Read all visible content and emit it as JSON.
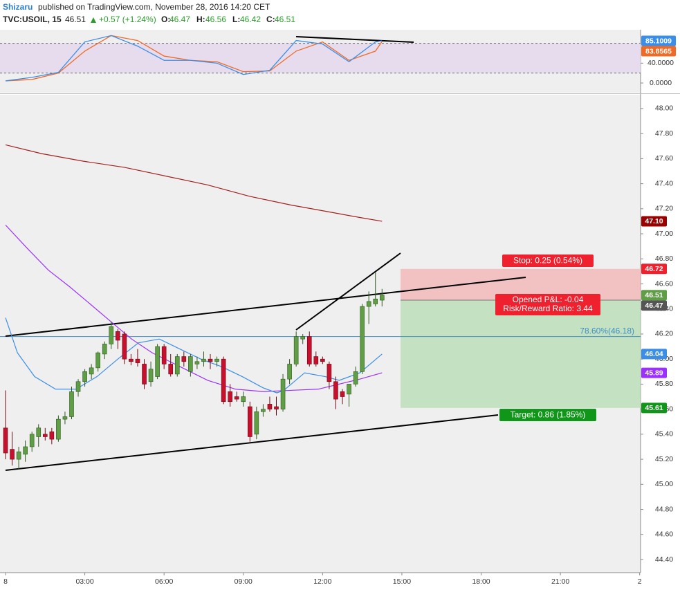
{
  "header": {
    "author": "Shizaru",
    "published": "published on TradingView.com, November 28, 2016 14:20 CET",
    "symbol": "TVC:USOIL, 15",
    "last": "46.51",
    "change": "+0.57 (+1.24%)",
    "o_label": "O:",
    "o": "46.47",
    "h_label": "H:",
    "h": "46.56",
    "l_label": "L:",
    "l": "46.42",
    "c_label": "C:",
    "c": "46.51"
  },
  "chart_data": [
    {
      "type": "candlestick",
      "x": [
        0,
        0.25,
        0.5,
        0.75,
        1,
        1.25,
        1.5,
        1.75,
        2,
        2.25,
        2.5,
        2.75,
        3,
        3.25,
        3.5,
        3.75,
        4,
        4.25,
        4.5,
        4.75,
        5,
        5.25,
        5.5,
        5.75,
        6,
        6.25,
        6.5,
        6.75,
        7,
        7.25,
        7.5,
        7.75,
        8,
        8.25,
        8.5,
        8.75,
        9,
        9.25,
        9.5,
        9.75,
        10,
        10.25,
        10.5,
        10.75,
        11,
        11.25,
        11.5,
        11.75,
        12,
        12.25,
        12.5,
        12.75,
        13,
        13.25,
        13.5,
        13.75,
        14,
        14.25
      ],
      "open": [
        45.45,
        45.28,
        45.2,
        45.24,
        45.3,
        45.38,
        45.4,
        45.42,
        45.36,
        45.52,
        45.54,
        45.74,
        45.82,
        45.88,
        45.93,
        46.04,
        46.12,
        46.22,
        46.2,
        46,
        46,
        45.96,
        45.82,
        45.86,
        46.1,
        45.96,
        45.88,
        46.02,
        45.9,
        45.96,
        45.98,
        46,
        45.98,
        46,
        45.74,
        45.7,
        45.66,
        45.62,
        45.4,
        45.58,
        45.64,
        45.62,
        45.6,
        45.84,
        45.96,
        46.16,
        46.18,
        46.02,
        46,
        45.96,
        45.82,
        45.74,
        45.72,
        45.8,
        45.9,
        46.42,
        46.44,
        46.47
      ],
      "high": [
        45.75,
        45.42,
        45.3,
        45.35,
        45.42,
        45.48,
        45.45,
        45.45,
        45.55,
        45.58,
        45.78,
        45.84,
        45.92,
        45.96,
        46.06,
        46.14,
        46.3,
        46.24,
        46.22,
        46.04,
        46.08,
        46,
        45.98,
        46.12,
        46.12,
        46.04,
        46.04,
        46.06,
        46.04,
        46.02,
        46.06,
        46.04,
        46.02,
        46.02,
        45.8,
        45.74,
        45.74,
        45.66,
        45.62,
        45.64,
        45.7,
        45.7,
        45.88,
        46,
        46.22,
        46.2,
        46.22,
        46.06,
        46.02,
        45.98,
        45.86,
        45.76,
        45.8,
        45.94,
        46.44,
        46.54,
        46.69,
        46.56
      ],
      "low": [
        45.2,
        45.15,
        45.12,
        45.18,
        45.26,
        45.3,
        45.35,
        45.32,
        45.34,
        45.48,
        45.52,
        45.7,
        45.78,
        45.84,
        45.9,
        46,
        46.08,
        46.08,
        45.96,
        45.95,
        45.94,
        45.76,
        45.78,
        45.84,
        45.92,
        45.86,
        45.86,
        45.94,
        45.86,
        45.92,
        45.94,
        45.92,
        45.94,
        45.64,
        45.62,
        45.66,
        45.62,
        45.34,
        45.36,
        45.54,
        45.58,
        45.55,
        45.58,
        45.8,
        45.94,
        46.12,
        45.94,
        45.94,
        45.96,
        45.76,
        45.6,
        45.64,
        45.62,
        45.78,
        45.88,
        46.28,
        46.42,
        46.42
      ],
      "close": [
        45.25,
        45.2,
        45.26,
        45.3,
        45.4,
        45.45,
        45.38,
        45.36,
        45.52,
        45.54,
        45.74,
        45.82,
        45.9,
        45.93,
        46.05,
        46.12,
        46.26,
        46.15,
        46,
        45.98,
        45.97,
        45.8,
        45.92,
        46.1,
        45.96,
        45.88,
        46.02,
        45.98,
        46.02,
        45.98,
        46,
        45.98,
        46,
        45.66,
        45.66,
        45.68,
        45.7,
        45.38,
        45.58,
        45.6,
        45.6,
        45.6,
        45.84,
        45.96,
        46.18,
        46.18,
        45.96,
        45.96,
        45.98,
        45.82,
        45.68,
        45.7,
        45.8,
        45.9,
        46.42,
        46.46,
        46.48,
        46.51
      ],
      "up_color": "#5f9e45",
      "down_color": "#c8102e",
      "overlays": [
        {
          "color": "#a3201e",
          "x": [
            0,
            1.36,
            2.93,
            4.51,
            6.08,
            7.65,
            9.22,
            10.79,
            12.37,
            13.41,
            14.25
          ],
          "values": [
            47.71,
            47.64,
            47.58,
            47.53,
            47.46,
            47.39,
            47.3,
            47.23,
            47.17,
            47.13,
            47.1
          ]
        },
        {
          "color": "#9b30ff",
          "x": [
            0,
            0.84,
            1.62,
            2.41,
            3.2,
            3.98,
            4.77,
            5.55,
            6.6,
            7.65,
            8.7,
            9.75,
            10.79,
            11.84,
            13.41,
            14.25
          ],
          "values": [
            47.07,
            46.88,
            46.71,
            46.58,
            46.44,
            46.3,
            46.16,
            46.05,
            45.94,
            45.83,
            45.76,
            45.74,
            45.75,
            45.76,
            45.84,
            45.89
          ]
        },
        {
          "color": "#3b8ee8",
          "x": [
            0,
            0.45,
            1.1,
            1.89,
            2.67,
            3.46,
            4.25,
            5.03,
            5.82,
            6.6,
            7.39,
            8.17,
            8.96,
            9.75,
            10.27,
            10.53,
            11.32,
            12.1,
            12.63,
            13.41,
            14.25
          ],
          "values": [
            46.33,
            46.05,
            45.86,
            45.76,
            45.76,
            45.86,
            46,
            46.13,
            46.16,
            46.08,
            46,
            45.94,
            45.86,
            45.77,
            45.73,
            45.75,
            45.89,
            45.86,
            45.83,
            45.89,
            46.04
          ]
        }
      ],
      "xlim": [
        0,
        24.05
      ],
      "xticks": [
        {
          "value": 0,
          "label": "8"
        },
        {
          "value": 3,
          "label": "03:00"
        },
        {
          "value": 6,
          "label": "06:00"
        },
        {
          "value": 9,
          "label": "09:00"
        },
        {
          "value": 12,
          "label": "12:00"
        },
        {
          "value": 15,
          "label": "15:00"
        },
        {
          "value": 18,
          "label": "18:00"
        },
        {
          "value": 21,
          "label": "21:00"
        },
        {
          "value": 24,
          "label": "2"
        }
      ],
      "ylim": [
        44.295,
        48.11
      ],
      "yticks": [
        {
          "value": 48,
          "label": "48.00"
        },
        {
          "value": 47.8,
          "label": "47.80"
        },
        {
          "value": 47.6,
          "label": "47.60"
        },
        {
          "value": 47.4,
          "label": "47.40"
        },
        {
          "value": 47.2,
          "label": "47.20"
        },
        {
          "value": 47,
          "label": "47.00"
        },
        {
          "value": 46.8,
          "label": "46.80"
        },
        {
          "value": 46.6,
          "label": "46.60"
        },
        {
          "value": 46.4,
          "label": "46.40"
        },
        {
          "value": 46.2,
          "label": "46.20"
        },
        {
          "value": 46,
          "label": "46.00"
        },
        {
          "value": 45.8,
          "label": "45.80"
        },
        {
          "value": 45.6,
          "label": "45.60"
        },
        {
          "value": 45.4,
          "label": "45.40"
        },
        {
          "value": 45.2,
          "label": "45.20"
        },
        {
          "value": 45,
          "label": "45.00"
        },
        {
          "value": 44.8,
          "label": "44.80"
        },
        {
          "value": 44.6,
          "label": "44.60"
        },
        {
          "value": 44.4,
          "label": "44.40"
        }
      ],
      "price_tags": [
        {
          "value": 47.1,
          "label": "47.10",
          "color": "#9b0000"
        },
        {
          "value": 46.72,
          "label": "46.72",
          "color": "#f0212e"
        },
        {
          "value": 46.51,
          "label": "46.51",
          "color": "#5f9e45"
        },
        {
          "value": 46.47,
          "label": "46.47",
          "color": "#555555"
        },
        {
          "value": 46.04,
          "label": "46.04",
          "color": "#3b8ee8"
        },
        {
          "value": 45.89,
          "label": "45.89",
          "color": "#9b30ff"
        },
        {
          "value": 45.61,
          "label": "45.61",
          "color": "#109618"
        }
      ],
      "fib": {
        "value": 46.18,
        "label": "78.60%(46.18)",
        "color": "#3d8fc6"
      },
      "position": {
        "stop": 46.72,
        "entry": 46.47,
        "target": 45.61,
        "stop_label": "Stop: 0.25 (0.54%)",
        "pnl_label": "Opened P&L: -0.04",
        "rr_label": "Risk/Reward Ratio: 3.44",
        "target_label": "Target: 0.86 (1.85%)"
      }
    },
    {
      "type": "line",
      "x": [
        0,
        1,
        2,
        3,
        4,
        5,
        6,
        7,
        8,
        9,
        10,
        11,
        12,
        13,
        14,
        14.25
      ],
      "series": [
        {
          "color": "#3b8ee8",
          "values": [
            4.3,
            11.4,
            21.4,
            82.9,
            95.7,
            74.3,
            45.7,
            45.7,
            40,
            17.1,
            25.7,
            85.7,
            78.6,
            42.9,
            82.9,
            85.1009
          ]
        },
        {
          "color": "#f06a25",
          "values": [
            4.3,
            7.1,
            20,
            64.3,
            95.7,
            85.7,
            54.3,
            45.7,
            42.9,
            22.9,
            24.3,
            64.3,
            82.9,
            45.7,
            64.3,
            83.8565
          ]
        }
      ],
      "xlim": [
        0,
        24.05
      ],
      "ylim": [
        -19.5,
        107.4
      ],
      "yticks": [
        {
          "value": 0,
          "label": "0.0000"
        },
        {
          "value": 40,
          "label": "40.0000"
        }
      ],
      "levels": [
        20,
        80
      ],
      "price_tags": [
        {
          "value": 85.1009,
          "label": "85.1009",
          "color": "#3b8ee8"
        },
        {
          "value": 83.8565,
          "label": "83.8565",
          "color": "#f06a25"
        }
      ]
    }
  ]
}
